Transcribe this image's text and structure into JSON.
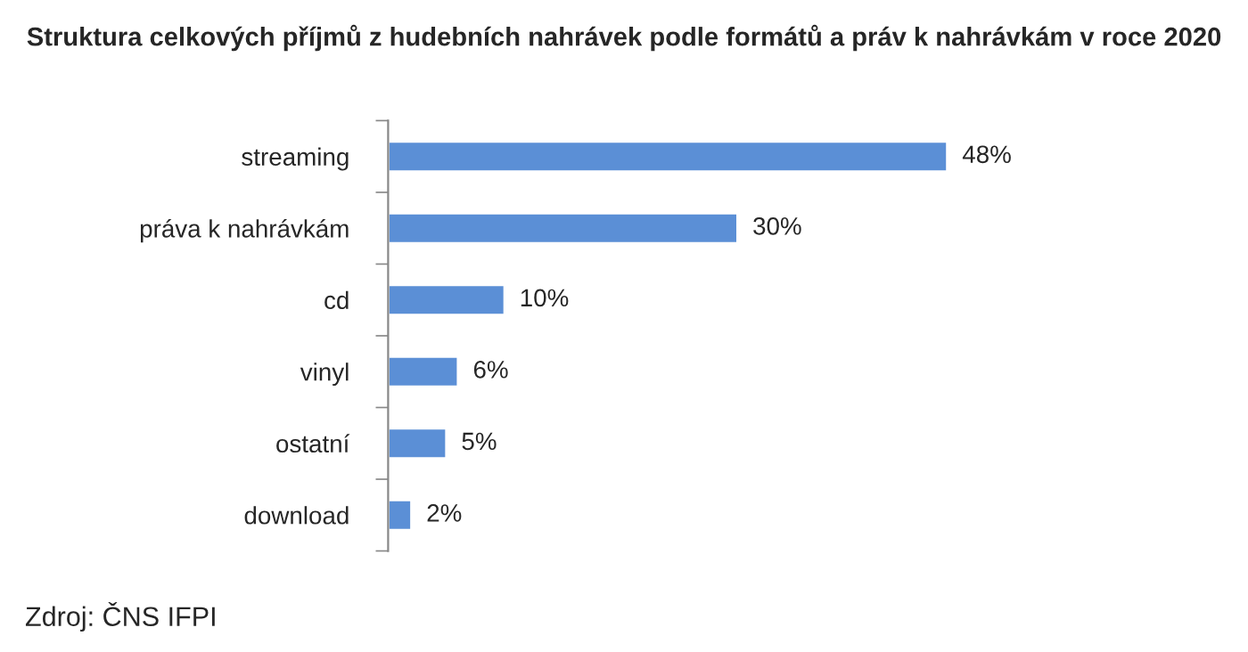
{
  "chart_data": {
    "type": "bar",
    "orientation": "horizontal",
    "title": "Struktura celkových příjmů z hudebních nahrávek podle formátů a práv k nahrávkám v roce 2020",
    "categories": [
      "streaming",
      "práva k nahrávkám",
      "cd",
      "vinyl",
      "ostatní",
      "download"
    ],
    "values": [
      48,
      30,
      10,
      6,
      5,
      2
    ],
    "value_labels": [
      "48%",
      "30%",
      "10%",
      "6%",
      "5%",
      "2%"
    ],
    "color": "#5b8fd6",
    "tick_labels": "y",
    "grid": false,
    "legend": false,
    "annotations": [
      "Zdroj: ČNS IFPI"
    ]
  }
}
